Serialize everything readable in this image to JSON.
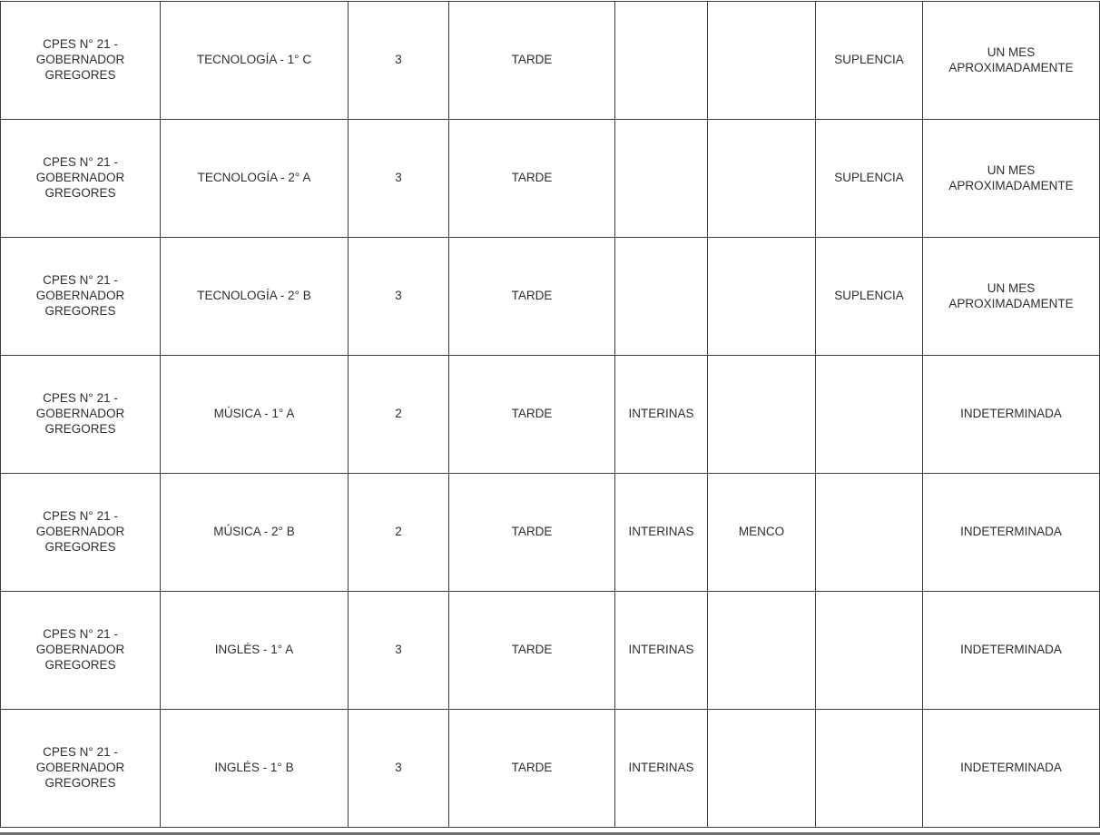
{
  "table": {
    "rows": [
      [
        "CPES N° 21 - GOBERNADOR GREGORES",
        "TECNOLOGÍA - 1° C",
        "3",
        "TARDE",
        "",
        "",
        "SUPLENCIA",
        "UN MES APROXIMADAMENTE"
      ],
      [
        "CPES N° 21 - GOBERNADOR GREGORES",
        "TECNOLOGÍA - 2° A",
        "3",
        "TARDE",
        "",
        "",
        "SUPLENCIA",
        "UN MES APROXIMADAMENTE"
      ],
      [
        "CPES N° 21 - GOBERNADOR GREGORES",
        "TECNOLOGÍA - 2° B",
        "3",
        "TARDE",
        "",
        "",
        "SUPLENCIA",
        "UN MES APROXIMADAMENTE"
      ],
      [
        "CPES N° 21 - GOBERNADOR GREGORES",
        "MÚSICA - 1° A",
        "2",
        "TARDE",
        "INTERINAS",
        "",
        "",
        "INDETERMINADA"
      ],
      [
        "CPES N° 21 - GOBERNADOR GREGORES",
        "MÚSICA - 2° B",
        "2",
        "TARDE",
        "INTERINAS",
        "MENCO",
        "",
        "INDETERMINADA"
      ],
      [
        "CPES N° 21 - GOBERNADOR GREGORES",
        "INGLÉS - 1° A",
        "3",
        "TARDE",
        "INTERINAS",
        "",
        "",
        "INDETERMINADA"
      ],
      [
        "CPES N° 21 - GOBERNADOR GREGORES",
        "INGLÉS - 1° B",
        "3",
        "TARDE",
        "INTERINAS",
        "",
        "",
        "INDETERMINADA"
      ]
    ]
  }
}
